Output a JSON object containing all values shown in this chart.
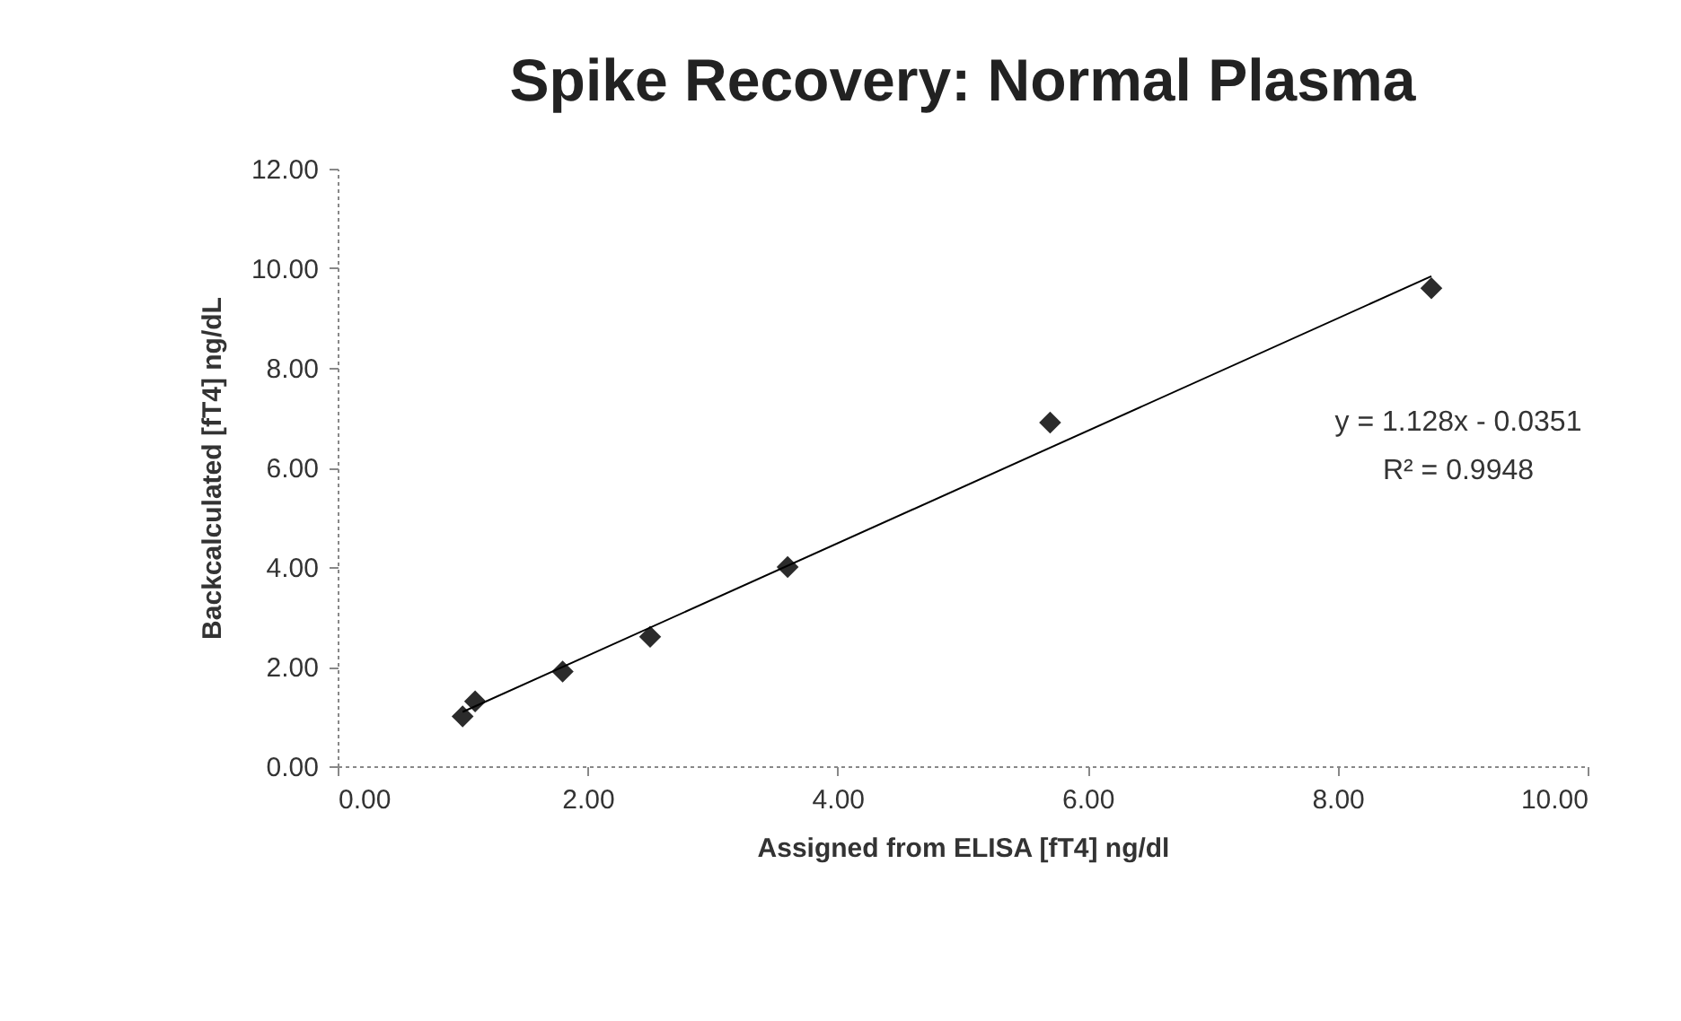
{
  "chart_data": {
    "type": "scatter",
    "title": "Spike Recovery: Normal Plasma",
    "xlabel": "Assigned from ELISA [fT4] ng/dl",
    "ylabel": "Backcalculated [fT4] ng/dL",
    "marker": "diamond",
    "grid": false,
    "xlim": [
      0,
      10
    ],
    "ylim": [
      0,
      12
    ],
    "xticks": [
      {
        "value": 0,
        "label": "0.00"
      },
      {
        "value": 2,
        "label": "2.00"
      },
      {
        "value": 4,
        "label": "4.00"
      },
      {
        "value": 6,
        "label": "6.00"
      },
      {
        "value": 8,
        "label": "8.00"
      },
      {
        "value": 10,
        "label": "10.00"
      }
    ],
    "yticks": [
      {
        "value": 0,
        "label": "0.00"
      },
      {
        "value": 2,
        "label": "2.00"
      },
      {
        "value": 4,
        "label": "4.00"
      },
      {
        "value": 6,
        "label": "6.00"
      },
      {
        "value": 8,
        "label": "8.00"
      },
      {
        "value": 10,
        "label": "10.00"
      },
      {
        "value": 12,
        "label": "12.00"
      }
    ],
    "series": [
      {
        "color": "#2b2b2b",
        "x": [
          1.0,
          1.1,
          1.8,
          2.5,
          3.6,
          5.7,
          8.75
        ],
        "values": [
          1.0,
          1.3,
          1.9,
          2.6,
          4.0,
          6.9,
          9.6
        ]
      },
      {
        "type": "line",
        "marker": "none",
        "color": "#000000",
        "x": [
          1.0,
          8.75
        ],
        "values": [
          1.09,
          9.84
        ]
      }
    ],
    "annotations": [
      {
        "text": "y = 1.128x - 0.0351"
      },
      {
        "text": "R² = 0.9948"
      }
    ]
  }
}
